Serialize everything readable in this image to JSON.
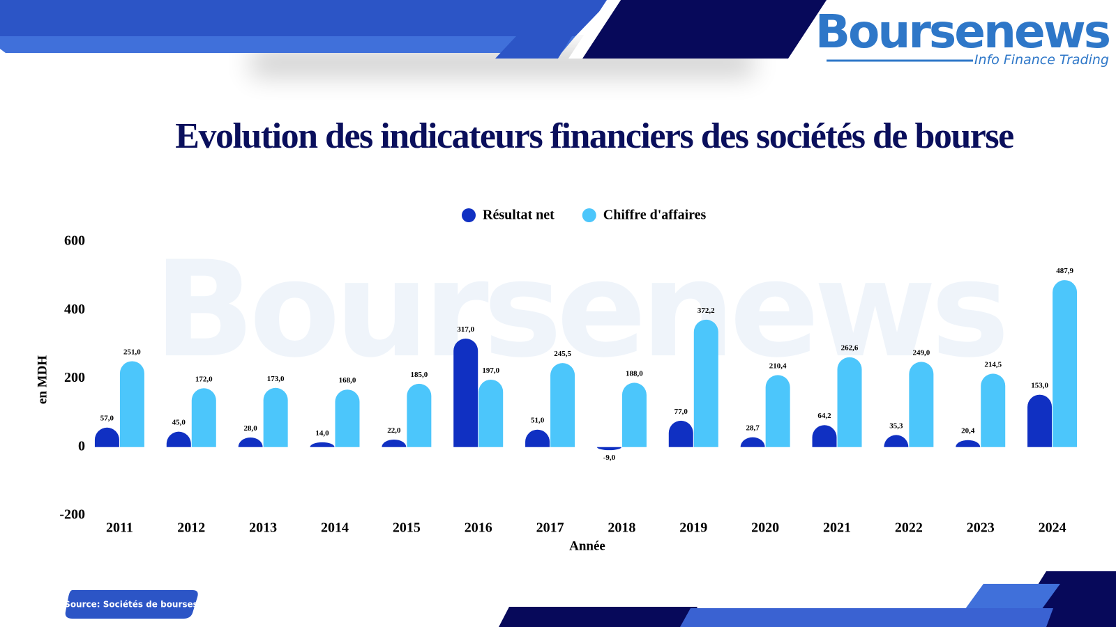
{
  "chart_data": {
    "type": "bar",
    "title": "Evolution des indicateurs financiers des sociétés de bourse",
    "logo": {
      "name": "Boursenews",
      "tagline": "Info Finance Trading"
    },
    "source": "Source: Sociétés de bourses",
    "x_label": "Année",
    "y_label": "en MDH",
    "categories": [
      "2011",
      "2012",
      "2013",
      "2014",
      "2015",
      "2016",
      "2017",
      "2018",
      "2019",
      "2020",
      "2021",
      "2022",
      "2023",
      "2024"
    ],
    "series": [
      {
        "name": "Résultat net",
        "color": "#1030c2",
        "values": [
          57.0,
          45.0,
          28.0,
          14.0,
          22.0,
          317.0,
          51.0,
          -9.0,
          77.0,
          28.7,
          64.2,
          35.3,
          20.4,
          153.0
        ],
        "value_labels": [
          "57,0",
          "45,0",
          "28,0",
          "14,0",
          "22,0",
          "317,0",
          "51,0",
          "-9,0",
          "77,0",
          "28,7",
          "64,2",
          "35,3",
          "20,4",
          "153,0"
        ]
      },
      {
        "name": "Chiffre d'affaires",
        "color": "#4cc6fb",
        "values": [
          251.0,
          172.0,
          173.0,
          168.0,
          185.0,
          197.0,
          245.5,
          188.0,
          372.2,
          210.4,
          262.6,
          249.0,
          214.5,
          487.9
        ],
        "value_labels": [
          "251,0",
          "172,0",
          "173,0",
          "168,0",
          "185,0",
          "197,0",
          "245,5",
          "188,0",
          "372,2",
          "210,4",
          "262,6",
          "249,0",
          "214,5",
          "487,9"
        ]
      }
    ],
    "ylim": [
      -200,
      600
    ],
    "yticks": [
      -200,
      0,
      200,
      400,
      600
    ],
    "grid": false,
    "legend": "top"
  }
}
